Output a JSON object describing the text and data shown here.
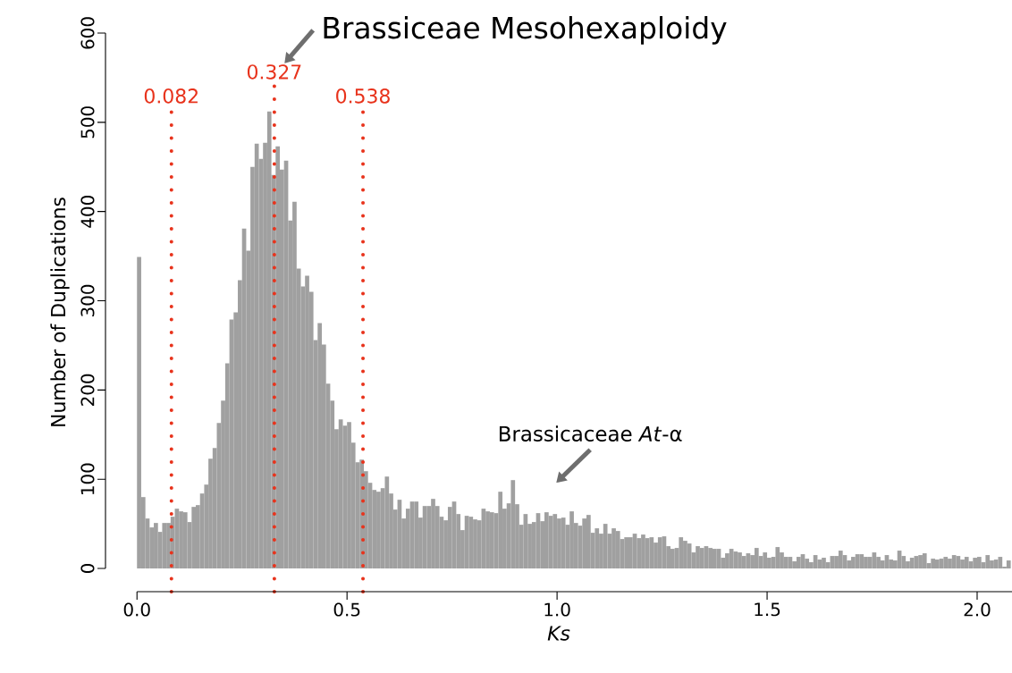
{
  "chart_data": {
    "type": "histogram",
    "xlabel": "Ks",
    "ylabel": "Number of Duplications",
    "color": "#a0a0a0",
    "bins": [
      0,
      0.01,
      0.02,
      0.03,
      0.04,
      0.05,
      0.06,
      0.07,
      0.08,
      0.09,
      0.1,
      0.11,
      0.12,
      0.13,
      0.14,
      0.15,
      0.16,
      0.17,
      0.18,
      0.19,
      0.2,
      0.21,
      0.22,
      0.23,
      0.24,
      0.25,
      0.26,
      0.27,
      0.28,
      0.29,
      0.3,
      0.31,
      0.32,
      0.33,
      0.34,
      0.35,
      0.36,
      0.37,
      0.38,
      0.39,
      0.4,
      0.41,
      0.42,
      0.43,
      0.44,
      0.45,
      0.46,
      0.47,
      0.48,
      0.49,
      0.5,
      0.51,
      0.52,
      0.53,
      0.54,
      0.55,
      0.56,
      0.57,
      0.58,
      0.59,
      0.6,
      0.61,
      0.62,
      0.63,
      0.64,
      0.65,
      0.66,
      0.67,
      0.68,
      0.69,
      0.7,
      0.71,
      0.72,
      0.73,
      0.74,
      0.75,
      0.76,
      0.77,
      0.78,
      0.79,
      0.8,
      0.81,
      0.82,
      0.83,
      0.84,
      0.85,
      0.86,
      0.87,
      0.88,
      0.89,
      0.9,
      0.91,
      0.92,
      0.93,
      0.94,
      0.95,
      0.96,
      0.97,
      0.98,
      0.99,
      1.0,
      1.01,
      1.02,
      1.03,
      1.04,
      1.05,
      1.06,
      1.07,
      1.08,
      1.09,
      1.1,
      1.11,
      1.12,
      1.13,
      1.14,
      1.15,
      1.16,
      1.17,
      1.18,
      1.19,
      1.2,
      1.21,
      1.22,
      1.23,
      1.24,
      1.25,
      1.26,
      1.27,
      1.28,
      1.29,
      1.3,
      1.31,
      1.32,
      1.33,
      1.34,
      1.35,
      1.36,
      1.37,
      1.38,
      1.39,
      1.4,
      1.41,
      1.42,
      1.43,
      1.44,
      1.45,
      1.46,
      1.47,
      1.48,
      1.49,
      1.5,
      1.51,
      1.52,
      1.53,
      1.54,
      1.55,
      1.56,
      1.57,
      1.58,
      1.59,
      1.6,
      1.61,
      1.62,
      1.63,
      1.64,
      1.65,
      1.66,
      1.67,
      1.68,
      1.69,
      1.7,
      1.71,
      1.72,
      1.73,
      1.74,
      1.75,
      1.76,
      1.77,
      1.78,
      1.79,
      1.8,
      1.81,
      1.82,
      1.83,
      1.84,
      1.85,
      1.86,
      1.87,
      1.88,
      1.89,
      1.9,
      1.91,
      1.92,
      1.93,
      1.94,
      1.95,
      1.96,
      1.97,
      1.98,
      1.99,
      2.0,
      2.01,
      2.02,
      2.03,
      2.04,
      2.05,
      2.06,
      2.07,
      2.08
    ],
    "values": [
      349,
      80,
      56,
      46,
      51,
      41,
      51,
      51,
      58,
      67,
      64,
      63,
      52,
      69,
      71,
      84,
      94,
      123,
      135,
      163,
      188,
      230,
      279,
      287,
      323,
      381,
      356,
      450,
      476,
      459,
      477,
      512,
      441,
      473,
      447,
      457,
      390,
      411,
      336,
      316,
      328,
      310,
      256,
      275,
      251,
      207,
      188,
      156,
      167,
      160,
      164,
      141,
      119,
      122,
      109,
      96,
      88,
      86,
      90,
      103,
      84,
      66,
      77,
      56,
      67,
      75,
      75,
      57,
      70,
      70,
      78,
      70,
      58,
      54,
      69,
      75,
      61,
      43,
      59,
      58,
      55,
      54,
      67,
      64,
      63,
      62,
      86,
      67,
      73,
      99,
      72,
      49,
      61,
      50,
      52,
      62,
      53,
      63,
      59,
      61,
      56,
      57,
      49,
      64,
      51,
      48,
      56,
      60,
      40,
      45,
      39,
      50,
      39,
      45,
      42,
      33,
      35,
      35,
      39,
      34,
      38,
      34,
      35,
      29,
      35,
      36,
      25,
      22,
      23,
      35,
      31,
      28,
      18,
      25,
      23,
      25,
      23,
      22,
      22,
      12,
      17,
      22,
      19,
      18,
      14,
      17,
      15,
      23,
      14,
      18,
      12,
      13,
      24,
      18,
      13,
      13,
      8,
      13,
      16,
      11,
      7,
      15,
      10,
      12,
      7,
      14,
      14,
      20,
      15,
      9,
      13,
      16,
      16,
      13,
      13,
      18,
      13,
      9,
      15,
      10,
      9,
      20,
      14,
      8,
      12,
      14,
      15,
      17,
      6,
      11,
      10,
      11,
      13,
      11,
      15,
      14,
      10,
      13,
      8,
      12,
      13,
      7,
      15,
      9,
      10,
      13,
      2,
      9
    ],
    "xlim": [
      -0.075,
      2.083
    ],
    "ylim": [
      -26,
      600
    ],
    "xticks": [
      {
        "value": 0,
        "label": "0.0"
      },
      {
        "value": 0.5,
        "label": "0.5"
      },
      {
        "value": 1,
        "label": "1.0"
      },
      {
        "value": 1.5,
        "label": "1.5"
      },
      {
        "value": 2,
        "label": "2.0"
      }
    ],
    "yticks": [
      0,
      100,
      200,
      300,
      400,
      500,
      600
    ],
    "ref_lines": [
      {
        "axis": "x",
        "value": 0.082,
        "label": "0.082",
        "color": "#e8331c",
        "line_style": "dotted"
      },
      {
        "axis": "x",
        "value": 0.327,
        "label": "0.327",
        "color": "#e8331c",
        "line_style": "dotted"
      },
      {
        "axis": "x",
        "value": 0.538,
        "label": "0.538",
        "color": "#e8331c",
        "line_style": "dotted"
      }
    ],
    "annotations": [
      "Brassiceae Mesohexaploidy",
      "Brassicaceae *At*-α"
    ]
  }
}
